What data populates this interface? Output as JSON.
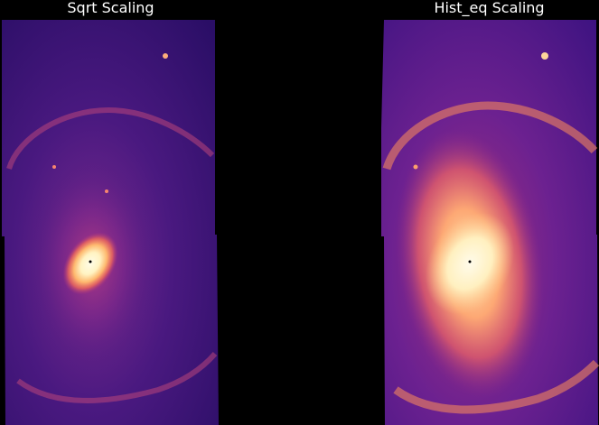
{
  "figure": {
    "background": "#000000",
    "colormap": "magma",
    "panels": [
      {
        "title": "Sqrt Scaling",
        "scaling": "sqrt"
      },
      {
        "title": "Hist_eq Scaling",
        "scaling": "hist_eq"
      }
    ]
  }
}
